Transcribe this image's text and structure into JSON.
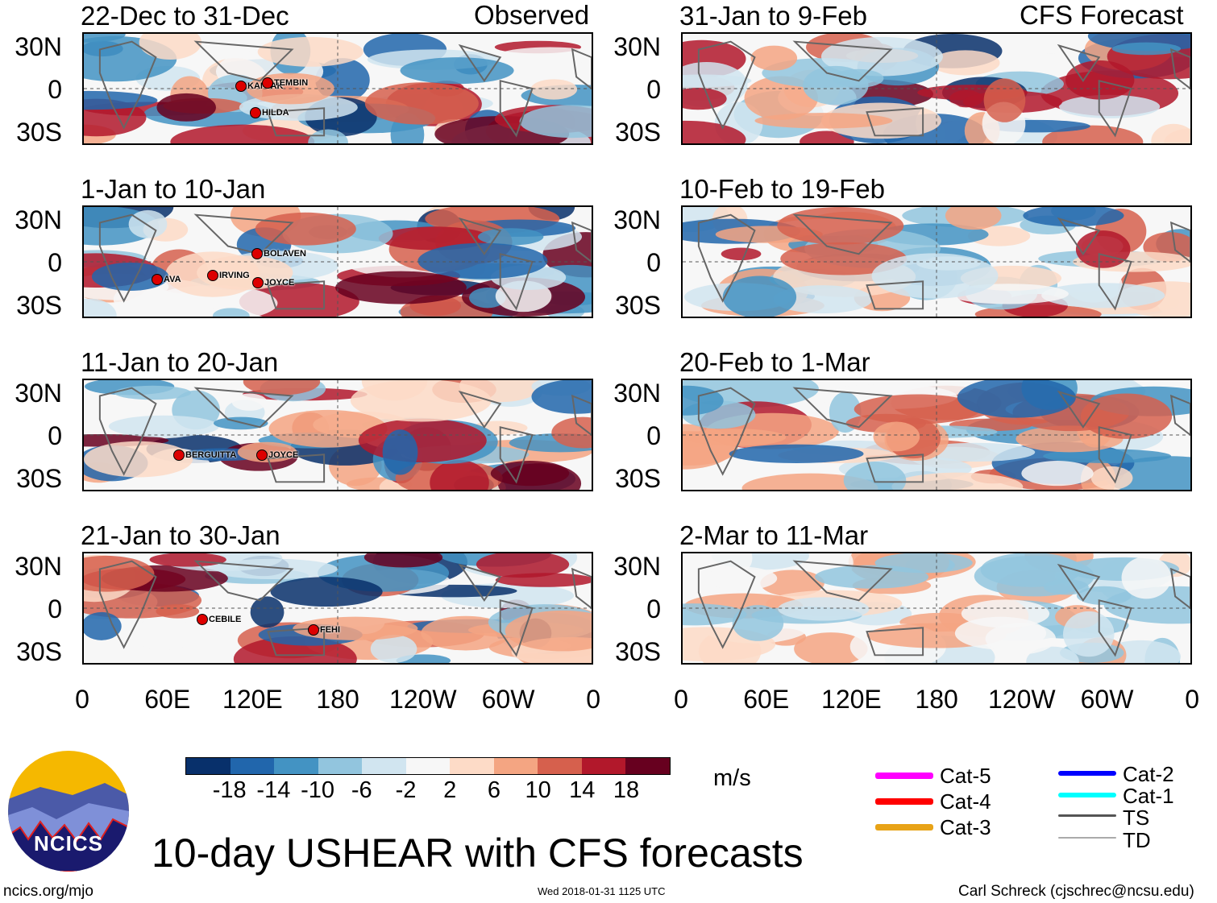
{
  "header": {
    "left_label": "Observed",
    "right_label": "CFS Forecast"
  },
  "panels": [
    {
      "title": "22-Dec to 31-Dec",
      "storms": [
        "KAI-TAK",
        "TEMBIN",
        "HILDA"
      ]
    },
    {
      "title": "1-Jan to 10-Jan",
      "storms": [
        "BOLAVEN",
        "AVA",
        "IRVING",
        "JOYCE"
      ]
    },
    {
      "title": "11-Jan to 20-Jan",
      "storms": [
        "BERGUITTA",
        "JOYCE"
      ]
    },
    {
      "title": "21-Jan to 30-Jan",
      "storms": [
        "CEBILE",
        "FEHI"
      ]
    },
    {
      "title": "31-Jan to 9-Feb",
      "storms": []
    },
    {
      "title": "10-Feb to 19-Feb",
      "storms": []
    },
    {
      "title": "20-Feb to 1-Mar",
      "storms": []
    },
    {
      "title": "2-Mar to 11-Mar",
      "storms": []
    }
  ],
  "lat_labels": [
    "30N",
    "0",
    "30S"
  ],
  "lon_labels": [
    "0",
    "60E",
    "120E",
    "180",
    "120W",
    "60W",
    "0"
  ],
  "colorbar": {
    "colors": [
      "#08306b",
      "#2166ac",
      "#4393c3",
      "#92c5de",
      "#d1e5f0",
      "#f7f7f7",
      "#fddbc7",
      "#f4a582",
      "#d6604d",
      "#b2182b",
      "#67001f"
    ],
    "labels": [
      "-18",
      "-14",
      "-10",
      "-6",
      "-2",
      "2",
      "6",
      "10",
      "14",
      "18"
    ],
    "units": "m/s"
  },
  "legend": [
    {
      "label": "Cat-5",
      "color": "#ff00ff"
    },
    {
      "label": "Cat-4",
      "color": "#ff0000"
    },
    {
      "label": "Cat-3",
      "color": "#e8a317"
    },
    {
      "label": "Cat-2",
      "color": "#0000ff"
    },
    {
      "label": "Cat-1",
      "color": "#00ffff"
    },
    {
      "label": "TS",
      "color": "#555555"
    },
    {
      "label": "TD",
      "color": "#aaaaaa"
    }
  ],
  "title": "10-day USHEAR with CFS forecasts",
  "logo_text": "NCICS",
  "footer": {
    "left": "ncics.org/mjo",
    "center": "Wed 2018-01-31 1125 UTC",
    "right": "Carl Schreck (cjschrec@ncsu.edu)"
  }
}
